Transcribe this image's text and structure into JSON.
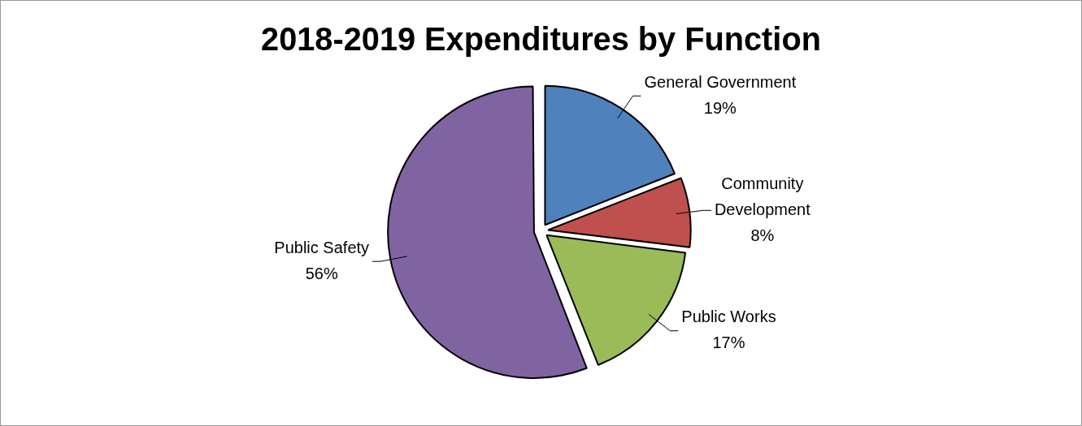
{
  "chart_data": {
    "type": "pie",
    "title": "2018-2019 Expenditures by Function",
    "categories": [
      "General Government",
      "Community Development",
      "Public Works",
      "Public Safety"
    ],
    "values": [
      19,
      8,
      17,
      56
    ],
    "colors": [
      "#4f81bd",
      "#c0504d",
      "#9bbb59",
      "#8064a2"
    ],
    "value_labels": [
      "19%",
      "8%",
      "17%",
      "56%"
    ],
    "legend": false
  }
}
